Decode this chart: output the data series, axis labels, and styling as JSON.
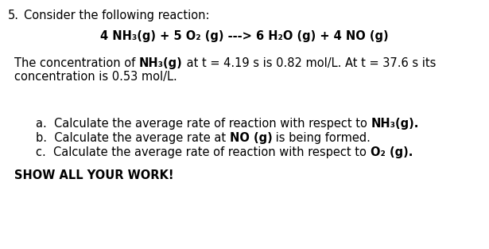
{
  "bg_color": "#ffffff",
  "question_number": "5.",
  "intro_text": "Consider the following reaction:",
  "equation": "4 NH₃(g) + 5 O₂ (g) ---> 6 H₂O (g) + 4 NO (g)",
  "para_before": "The concentration of ",
  "para_bold": "NH₃(g)",
  "para_after": " at t = 4.19 s is 0.82 mol/L. At t = 37.6 s its",
  "para_line2": "concentration is 0.53 mol/L.",
  "a_before": "a.  Calculate the average rate of reaction with respect to ",
  "a_bold": "NH₃(g).",
  "b_before": "b.  Calculate the average rate at ",
  "b_bold": "NO (g)",
  "b_after": " is being formed.",
  "c_before": "c.  Calculate the average rate of reaction with respect to ",
  "c_bold": "O₂ (g).",
  "footer": "SHOW ALL YOUR WORK!",
  "fs": 10.5,
  "ff": "DejaVu Sans"
}
